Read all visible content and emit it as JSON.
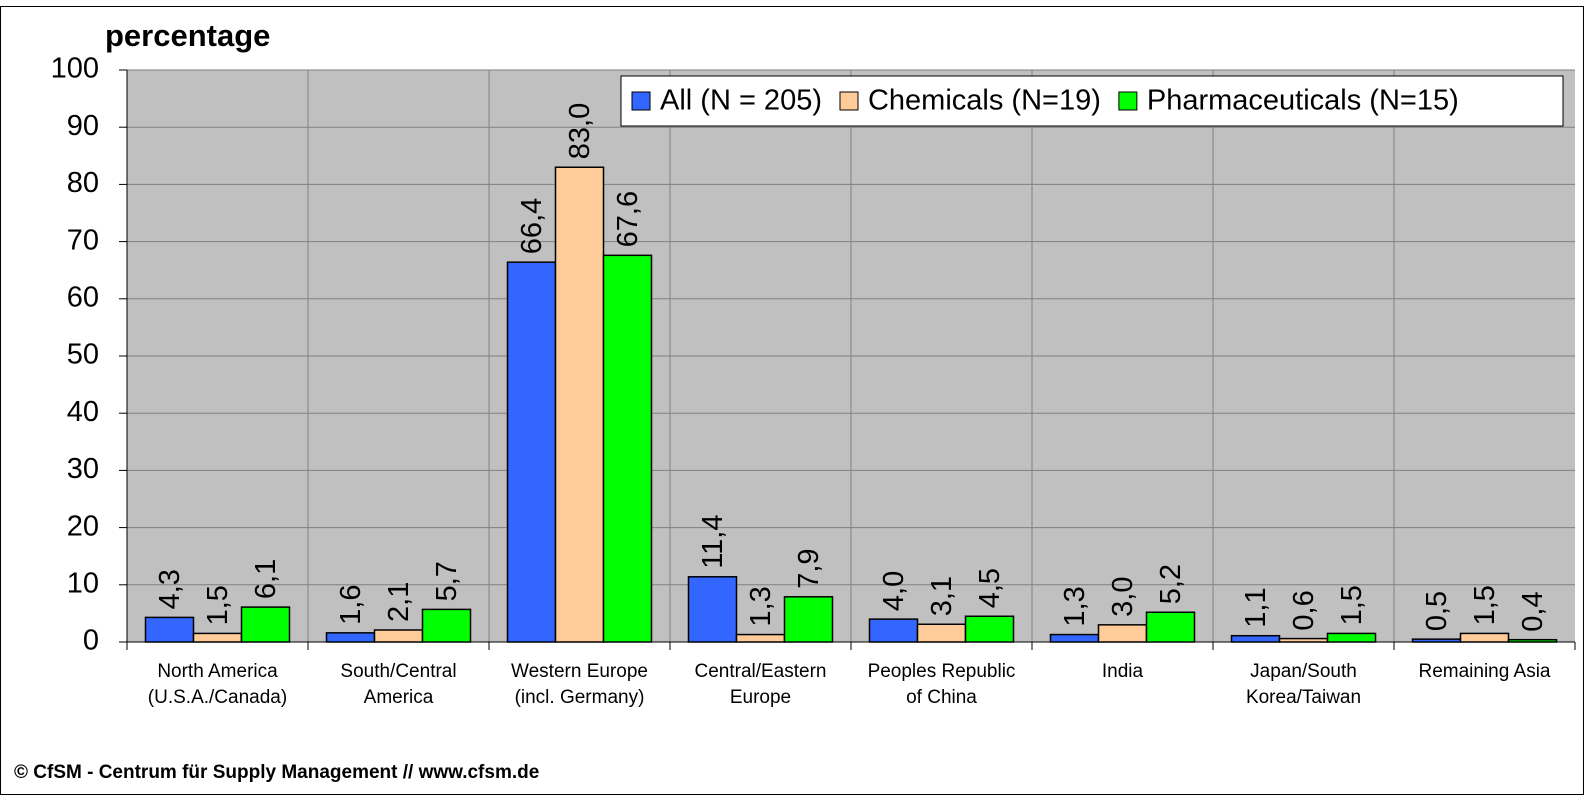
{
  "chart_data": {
    "type": "bar",
    "title": "percentage",
    "footer": "© CfSM - Centrum für Supply Management // www.cfsm.de",
    "categories": [
      "North America\n(U.S.A./Canada)",
      "South/Central\nAmerica",
      "Western Europe\n(incl. Germany)",
      "Central/Eastern\nEurope",
      "Peoples Republic\nof China",
      "India",
      "Japan/South\nKorea/Taiwan",
      "Remaining Asia"
    ],
    "series": [
      {
        "name": "All (N = 205)",
        "color": "#3366ff",
        "values": [
          4.3,
          1.6,
          66.4,
          11.4,
          4.0,
          1.3,
          1.1,
          0.5
        ],
        "value_labels": [
          "4,3",
          "1,6",
          "66,4",
          "11,4",
          "4,0",
          "1,3",
          "1,1",
          "0,5"
        ]
      },
      {
        "name": "Chemicals (N=19)",
        "color": "#ffcc99",
        "values": [
          1.5,
          2.1,
          83.0,
          1.3,
          3.1,
          3.0,
          0.6,
          1.5
        ],
        "value_labels": [
          "1,5",
          "2,1",
          "83,0",
          "1,3",
          "3,1",
          "3,0",
          "0,6",
          "1,5"
        ]
      },
      {
        "name": "Pharmaceuticals (N=15)",
        "color": "#00ff00",
        "values": [
          6.1,
          5.7,
          67.6,
          7.9,
          4.5,
          5.2,
          1.5,
          0.4
        ],
        "value_labels": [
          "6,1",
          "5,7",
          "67,6",
          "7,9",
          "4,5",
          "5,2",
          "1,5",
          "0,4"
        ]
      }
    ],
    "ylim": [
      0,
      100
    ],
    "yticks": [
      0,
      10,
      20,
      30,
      40,
      50,
      60,
      70,
      80,
      90,
      100
    ],
    "grid": true,
    "legend": "top-right"
  }
}
